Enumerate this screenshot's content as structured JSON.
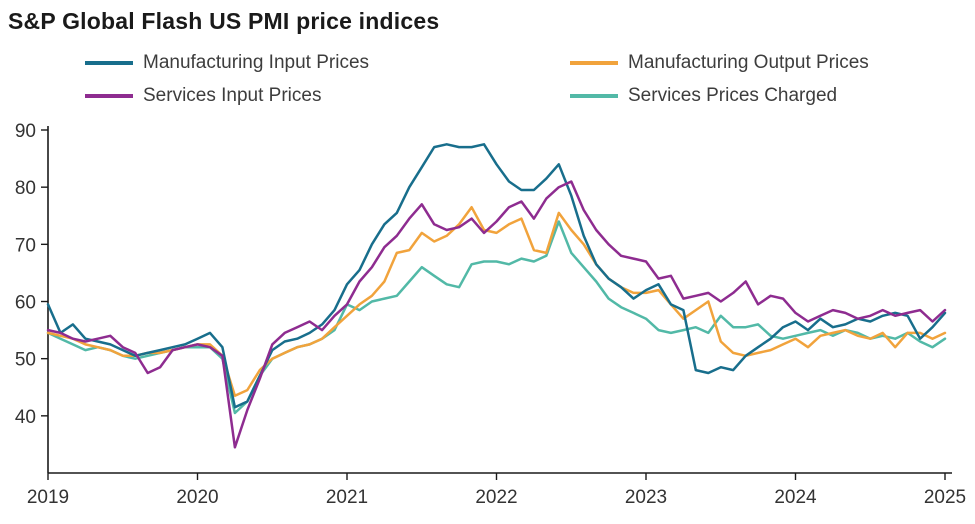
{
  "title": "S&P Global Flash US PMI price indices",
  "chart_data": {
    "type": "line",
    "title": "S&P Global Flash US PMI price indices",
    "x_start": "2019-01",
    "x_end": "2025-01",
    "x_interval": "monthly",
    "x_tick_labels": [
      "2019",
      "2020",
      "2021",
      "2022",
      "2023",
      "2024",
      "2025"
    ],
    "y_ticks": [
      40,
      50,
      60,
      70,
      80,
      90
    ],
    "ylim": [
      30,
      90
    ],
    "grid": false,
    "legend_position": "top",
    "axis_color": "#1a1a1a",
    "series": [
      {
        "name": "Manufacturing Input Prices",
        "color": "#186e8c",
        "values": [
          59.5,
          54.5,
          56.0,
          53.5,
          53.0,
          52.5,
          51.5,
          50.5,
          51.0,
          51.5,
          52.0,
          52.5,
          53.5,
          54.5,
          52.0,
          41.5,
          42.5,
          47.0,
          51.5,
          53.0,
          53.5,
          54.5,
          56.0,
          58.5,
          63.0,
          65.5,
          70.0,
          73.5,
          75.5,
          80.0,
          83.5,
          87.0,
          87.5,
          87.0,
          87.0,
          87.5,
          84.0,
          81.0,
          79.5,
          79.5,
          81.5,
          84.0,
          78.5,
          71.5,
          66.5,
          64.0,
          62.5,
          60.5,
          62.0,
          63.0,
          59.5,
          58.5,
          48.0,
          47.5,
          48.5,
          48.0,
          50.5,
          52.0,
          53.5,
          55.5,
          56.5,
          55.0,
          57.0,
          55.5,
          56.0,
          57.0,
          56.5,
          57.5,
          58.0,
          57.5,
          53.5,
          55.5,
          58.0
        ]
      },
      {
        "name": "Manufacturing Output Prices",
        "color": "#f1a33c",
        "values": [
          54.5,
          54.0,
          53.5,
          52.5,
          52.0,
          51.5,
          50.5,
          50.5,
          51.0,
          51.0,
          51.5,
          52.0,
          52.5,
          52.5,
          50.5,
          43.5,
          44.5,
          48.0,
          50.0,
          51.0,
          52.0,
          52.5,
          53.5,
          55.5,
          57.5,
          59.5,
          61.0,
          63.5,
          68.5,
          69.0,
          72.0,
          70.5,
          71.5,
          73.5,
          76.5,
          72.5,
          72.0,
          73.5,
          74.5,
          69.0,
          68.5,
          75.5,
          72.5,
          70.0,
          66.5,
          64.0,
          62.5,
          61.5,
          61.5,
          62.0,
          59.5,
          57.0,
          58.5,
          60.0,
          53.0,
          51.0,
          50.5,
          51.0,
          51.5,
          52.5,
          53.5,
          52.0,
          54.0,
          54.5,
          55.0,
          54.0,
          53.5,
          54.5,
          52.0,
          54.5,
          54.5,
          53.5,
          54.5
        ]
      },
      {
        "name": "Services Input Prices",
        "color": "#8e2c90",
        "values": [
          55.0,
          54.5,
          53.5,
          53.0,
          53.5,
          54.0,
          52.0,
          51.0,
          47.5,
          48.5,
          51.5,
          52.0,
          52.5,
          52.0,
          50.5,
          34.5,
          41.0,
          46.5,
          52.5,
          54.5,
          55.5,
          56.5,
          55.0,
          57.5,
          59.5,
          63.5,
          66.0,
          69.5,
          71.5,
          74.5,
          77.0,
          73.5,
          72.5,
          73.0,
          74.5,
          72.0,
          74.0,
          76.5,
          77.5,
          74.5,
          78.0,
          80.0,
          81.0,
          76.0,
          72.5,
          70.0,
          68.0,
          67.5,
          67.0,
          64.0,
          64.5,
          60.5,
          61.0,
          61.5,
          60.0,
          61.5,
          63.5,
          59.5,
          61.0,
          60.5,
          58.0,
          56.5,
          57.5,
          58.5,
          58.0,
          57.0,
          57.5,
          58.5,
          57.5,
          58.0,
          58.5,
          56.5,
          58.5
        ]
      },
      {
        "name": "Services Prices Charged",
        "color": "#52b9a7",
        "values": [
          54.5,
          53.5,
          52.5,
          51.5,
          52.0,
          51.5,
          50.5,
          50.0,
          50.5,
          51.0,
          51.5,
          52.0,
          52.0,
          52.0,
          50.0,
          40.5,
          42.5,
          47.0,
          50.0,
          51.0,
          52.0,
          52.5,
          53.5,
          55.0,
          59.5,
          58.5,
          60.0,
          60.5,
          61.0,
          63.5,
          66.0,
          64.5,
          63.0,
          62.5,
          66.5,
          67.0,
          67.0,
          66.5,
          67.5,
          67.0,
          68.0,
          74.0,
          68.5,
          66.0,
          63.5,
          60.5,
          59.0,
          58.0,
          57.0,
          55.0,
          54.5,
          55.0,
          55.5,
          54.5,
          57.5,
          55.5,
          55.5,
          56.0,
          54.0,
          53.5,
          54.0,
          54.5,
          55.0,
          54.0,
          55.0,
          54.5,
          53.5,
          54.0,
          53.5,
          54.5,
          53.0,
          52.0,
          53.5
        ]
      }
    ]
  }
}
